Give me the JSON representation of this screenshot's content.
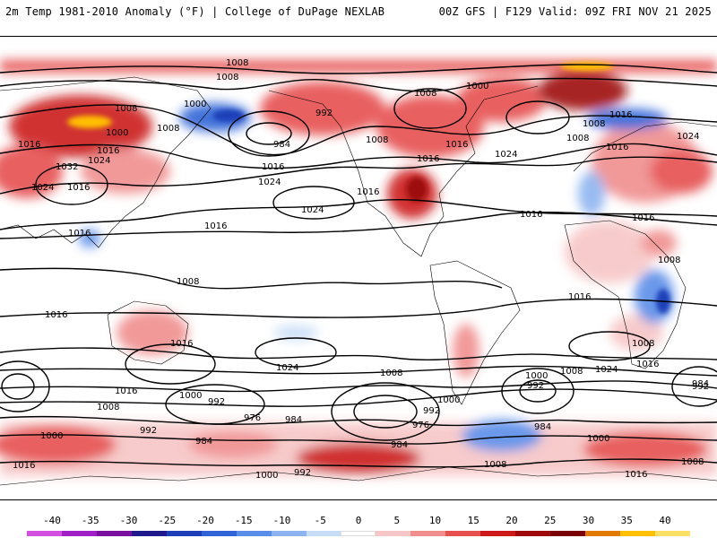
{
  "header": {
    "title_left": "2m Temp 1981-2010 Anomaly (°F) | College of DuPage NEXLAB",
    "title_right": "00Z GFS | F129 Valid: 09Z FRI NOV 21 2025"
  },
  "colorbar": {
    "ticks": [
      "-40",
      "-35",
      "-30",
      "-25",
      "-20",
      "-15",
      "-10",
      "-5",
      "0",
      "5",
      "10",
      "15",
      "20",
      "25",
      "30",
      "35",
      "40"
    ],
    "colors": [
      "#d24fe0",
      "#a020c8",
      "#7a0f9e",
      "#1e1a8c",
      "#1c3fb8",
      "#2f63d6",
      "#5a8de8",
      "#8db4f0",
      "#c6dcf7",
      "#ffffff",
      "#f7c6c6",
      "#f08e8e",
      "#e6504f",
      "#cc1a1a",
      "#9e0a0a",
      "#7a0000",
      "#e07a00",
      "#ffc000",
      "#ffe066"
    ]
  },
  "map": {
    "contour_labels": [
      "1008",
      "1008",
      "1000",
      "1008",
      "992",
      "1000",
      "1008",
      "1016",
      "1000",
      "1008",
      "1016",
      "1032",
      "1024",
      "1024",
      "1016",
      "984",
      "1016",
      "1024",
      "1024",
      "1016",
      "1016",
      "1016",
      "1024",
      "1016",
      "1008",
      "1024",
      "1016",
      "1008",
      "1008",
      "1016",
      "1016",
      "1008",
      "1016",
      "1016",
      "1008",
      "1016",
      "1024",
      "1000",
      "992",
      "976",
      "984",
      "976",
      "992",
      "1008",
      "1000",
      "992",
      "984",
      "1016",
      "1008",
      "1000",
      "992",
      "984",
      "1016",
      "1000",
      "1016",
      "992",
      "1008",
      "1016",
      "1024",
      "1016",
      "1008",
      "992",
      "1000",
      "984",
      "984",
      "1016",
      "1000",
      "1008",
      "1008"
    ]
  }
}
